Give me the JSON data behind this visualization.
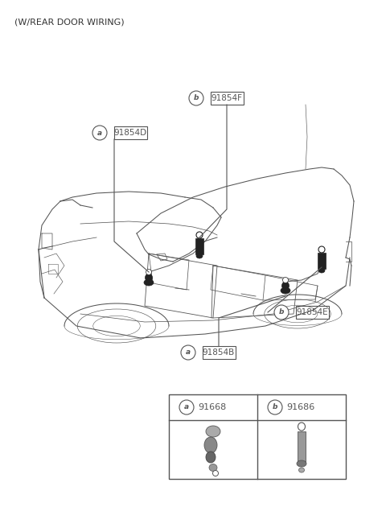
{
  "title": "(W/REAR DOOR WIRING)",
  "bg_color": "#ffffff",
  "line_color": "#555555",
  "text_color": "#333333",
  "label_91854F": "91854F",
  "label_91854D": "91854D",
  "label_91854E": "91854E",
  "label_91854B": "91854B",
  "legend_a_num": "91668",
  "legend_b_num": "91686",
  "car_lw": 0.75,
  "car_color": "#555555",
  "figsize": [
    4.8,
    6.56
  ],
  "dpi": 100,
  "xlim": [
    0,
    480
  ],
  "ylim": [
    0,
    656
  ]
}
